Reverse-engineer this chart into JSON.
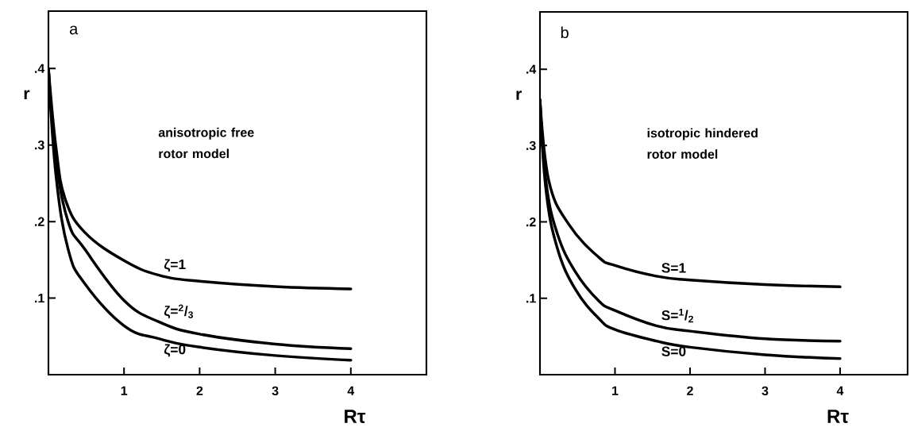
{
  "chart_data": [
    {
      "type": "line",
      "xlabel": "Rτ",
      "ylabel": "r",
      "annotations": [
        "a",
        "anisotropic free rotor model"
      ],
      "xlim": [
        0,
        5
      ],
      "ylim": [
        0,
        0.475
      ],
      "xticks": [
        1,
        2,
        3,
        4
      ],
      "yticks": [
        {
          "value": 0.1,
          "label": ".1"
        },
        {
          "value": 0.2,
          "label": ".2"
        },
        {
          "value": 0.3,
          "label": ".3"
        },
        {
          "value": 0.4,
          "label": ".4"
        }
      ],
      "grid": false,
      "marker": "none",
      "line_style": "solid",
      "series": [
        {
          "name": "ζ=1",
          "color": "#000000",
          "x": [
            0,
            0.1,
            0.22,
            0.48,
            1.0,
            1.46,
            2.0,
            3.0,
            4.0
          ],
          "values": [
            0.4,
            0.297,
            0.23,
            0.186,
            0.149,
            0.13,
            0.122,
            0.115,
            0.112
          ]
        },
        {
          "name": "ζ=$^{2}$/$_{3}$",
          "color": "#000000",
          "x": [
            0,
            0.1,
            0.26,
            0.48,
            1.0,
            1.46,
            2.0,
            3.0,
            4.0
          ],
          "values": [
            0.4,
            0.282,
            0.2,
            0.164,
            0.097,
            0.069,
            0.053,
            0.04,
            0.034
          ]
        },
        {
          "name": "ζ=0",
          "color": "#000000",
          "x": [
            0,
            0.1,
            0.26,
            0.48,
            1.0,
            1.46,
            2.0,
            3.0,
            4.0
          ],
          "values": [
            0.4,
            0.26,
            0.164,
            0.119,
            0.064,
            0.047,
            0.036,
            0.025,
            0.019
          ]
        }
      ]
    },
    {
      "type": "line",
      "xlabel": "Rτ",
      "ylabel": "r",
      "annotations": [
        "b",
        "isotropic hindered rotor model"
      ],
      "xlim": [
        0,
        4.9
      ],
      "ylim": [
        0,
        0.475
      ],
      "xticks": [
        1,
        2,
        3,
        4
      ],
      "yticks": [
        {
          "value": 0.1,
          "label": ".1"
        },
        {
          "value": 0.2,
          "label": ".2"
        },
        {
          "value": 0.3,
          "label": ".3"
        },
        {
          "value": 0.4,
          "label": ".4"
        }
      ],
      "grid": false,
      "marker": "none",
      "line_style": "solid",
      "series": [
        {
          "name": "S=1",
          "color": "#000000",
          "x": [
            0,
            0.12,
            0.39,
            0.78,
            1.0,
            1.55,
            2.0,
            3.0,
            4.0
          ],
          "values": [
            0.36,
            0.253,
            0.196,
            0.154,
            0.143,
            0.129,
            0.124,
            0.118,
            0.115
          ]
        },
        {
          "name": "S=$^{1}$/$_{2}$",
          "color": "#000000",
          "x": [
            0,
            0.08,
            0.23,
            0.47,
            0.78,
            1.0,
            1.55,
            2.0,
            3.0,
            4.0
          ],
          "values": [
            0.36,
            0.253,
            0.185,
            0.135,
            0.097,
            0.084,
            0.064,
            0.057,
            0.047,
            0.044
          ]
        },
        {
          "name": "S=0",
          "color": "#000000",
          "x": [
            0,
            0.08,
            0.23,
            0.47,
            0.78,
            1.0,
            1.55,
            2.0,
            3.0,
            4.0
          ],
          "values": [
            0.36,
            0.242,
            0.166,
            0.112,
            0.074,
            0.059,
            0.044,
            0.036,
            0.026,
            0.021
          ]
        }
      ]
    }
  ]
}
